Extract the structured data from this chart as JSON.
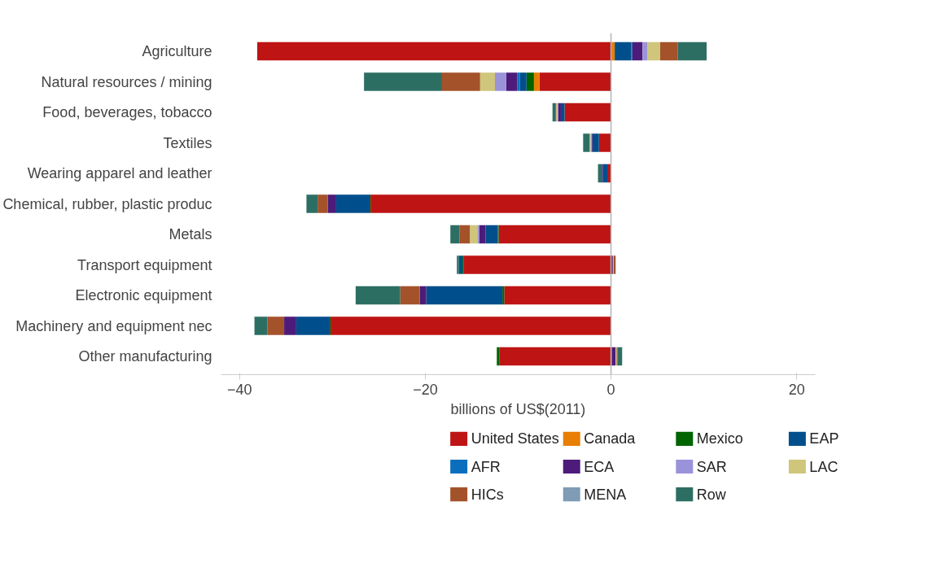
{
  "chart_data": {
    "type": "bar",
    "orientation": "horizontal",
    "stacked": true,
    "xlabel": "billions of US$(2011)",
    "categories": [
      "Agriculture",
      "Natural resources / mining",
      "Food, beverages, tobacco",
      "Textiles",
      "Wearing apparel and leather",
      "Chemical, rubber, plastic produc",
      "Metals",
      "Transport equipment",
      "Electronic equipment",
      "Machinery and equipment nec",
      "Other manufacturing"
    ],
    "series": [
      {
        "name": "United States",
        "color": "#be1414",
        "values": [
          -38.1,
          -7.7,
          -5.0,
          -1.3,
          -0.4,
          -25.9,
          -12.1,
          -15.9,
          -11.5,
          -30.2,
          -12.0
        ]
      },
      {
        "name": "Canada",
        "color": "#e87e04",
        "values": [
          0.4,
          -0.6,
          0,
          0,
          0,
          0,
          0,
          0,
          0,
          0,
          0
        ]
      },
      {
        "name": "Mexico",
        "color": "#006400",
        "values": [
          0,
          -0.8,
          0,
          0,
          0,
          -0.1,
          -0.1,
          -0.1,
          -0.2,
          -0.1,
          -0.3
        ]
      },
      {
        "name": "EAP",
        "color": "#004f8c",
        "values": [
          1.8,
          -0.7,
          -0.4,
          -0.7,
          -0.5,
          -3.6,
          -1.3,
          -0.4,
          -8.2,
          -3.6,
          0.1
        ]
      },
      {
        "name": "AFR",
        "color": "#0a6ebd",
        "values": [
          0.1,
          -0.3,
          0,
          0,
          0,
          0,
          0,
          0,
          0,
          0,
          0
        ]
      },
      {
        "name": "ECA",
        "color": "#4d1c7a",
        "values": [
          1.1,
          -1.2,
          -0.3,
          -0.1,
          -0.1,
          -0.9,
          -0.7,
          0.2,
          -0.7,
          -1.3,
          0.4
        ]
      },
      {
        "name": "SAR",
        "color": "#9b93d9",
        "values": [
          0.5,
          -1.2,
          -0.1,
          -0.1,
          0,
          0,
          -0.2,
          0,
          0,
          0,
          0
        ]
      },
      {
        "name": "LAC",
        "color": "#cfc57b",
        "values": [
          1.4,
          -1.6,
          -0.1,
          -0.1,
          0,
          0,
          -0.8,
          0.1,
          0,
          0,
          0.1
        ]
      },
      {
        "name": "HICs",
        "color": "#a4522a",
        "values": [
          1.9,
          -4.1,
          -0.1,
          0,
          0,
          -1.1,
          -1.1,
          0.2,
          -2.1,
          -1.8,
          0.1
        ]
      },
      {
        "name": "MENA",
        "color": "#7f9bb5",
        "values": [
          0,
          0,
          0,
          0,
          0,
          0,
          0,
          0,
          0,
          0,
          0
        ]
      },
      {
        "name": "Row",
        "color": "#2d6e63",
        "values": [
          3.1,
          -8.4,
          -0.3,
          -0.7,
          -0.4,
          -1.2,
          -1.0,
          -0.2,
          -4.8,
          -1.4,
          0.5
        ]
      }
    ],
    "xlim": [
      -42,
      22
    ],
    "xticks": [
      -40,
      -20,
      0,
      20
    ],
    "grid": false,
    "legend": "bottom",
    "ref_lines": [
      {
        "axis": "x",
        "value": 0,
        "color": "#b4b4b4"
      }
    ]
  }
}
